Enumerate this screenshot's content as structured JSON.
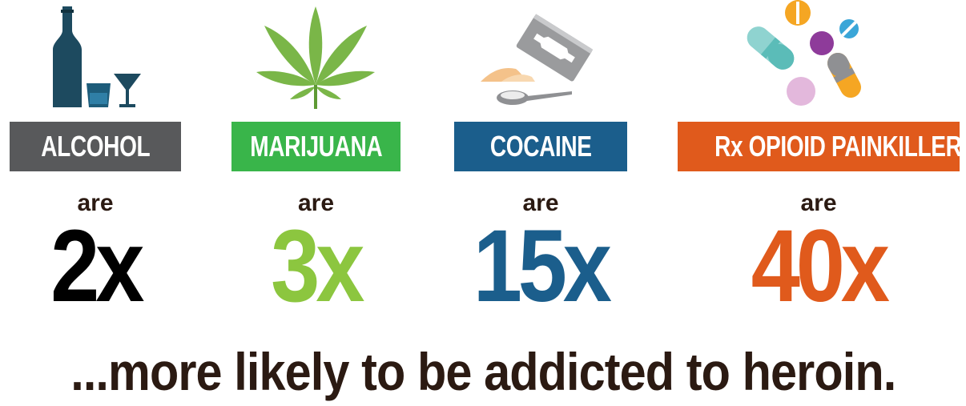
{
  "colors": {
    "alcohol": "#58595b",
    "marijuana": "#39b54a",
    "marijuana_number": "#8cc63f",
    "cocaine": "#1b5e8c",
    "opioid": "#e05a1c",
    "text_dark": "#2b1a12"
  },
  "items": [
    {
      "label": "ALCOHOL",
      "connector": "are",
      "multiplier": "2x",
      "icon": "alcohol-bottle-glasses-icon"
    },
    {
      "label": "MARIJUANA",
      "connector": "are",
      "multiplier": "3x",
      "icon": "cannabis-leaf-icon"
    },
    {
      "label": "COCAINE",
      "connector": "are",
      "multiplier": "15x",
      "icon": "razor-blade-spoon-icon"
    },
    {
      "label": "Rx OPIOID PAINKILLERS",
      "connector": "are",
      "multiplier": "40x",
      "icon": "pills-icon"
    }
  ],
  "tagline": "...more likely to be addicted to heroin."
}
